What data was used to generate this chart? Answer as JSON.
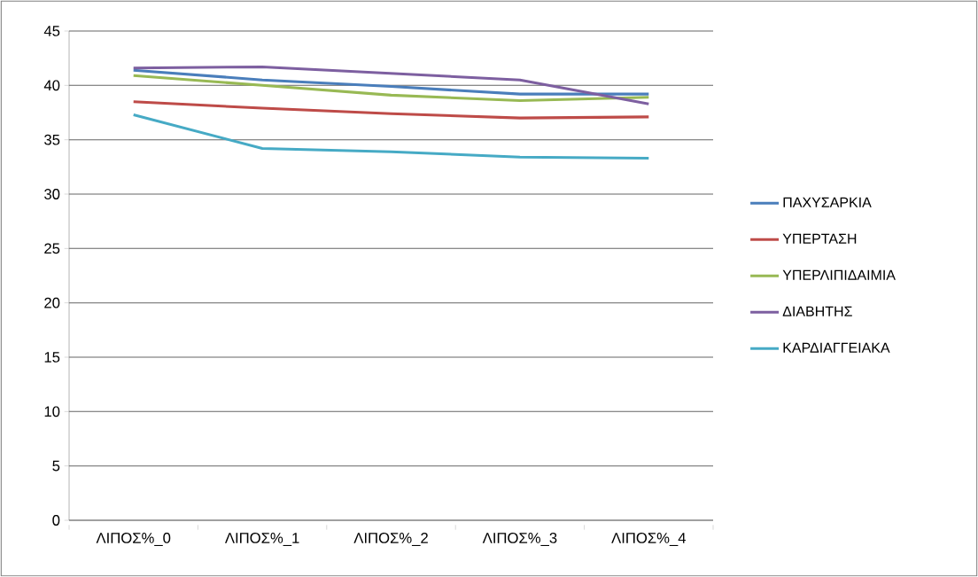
{
  "chart_data": {
    "type": "line",
    "categories": [
      "ΛΙΠΟΣ%_0",
      "ΛΙΠΟΣ%_1",
      "ΛΙΠΟΣ%_2",
      "ΛΙΠΟΣ%_3",
      "ΛΙΠΟΣ%_4"
    ],
    "series": [
      {
        "name": "ΠΑΧΥΣΑΡΚΙΑ",
        "color": "#4a7ebb",
        "values": [
          41.4,
          40.5,
          39.9,
          39.2,
          39.2
        ]
      },
      {
        "name": "ΥΠΕΡΤΑΣΗ",
        "color": "#be4b48",
        "values": [
          38.5,
          37.9,
          37.4,
          37.0,
          37.1
        ]
      },
      {
        "name": "ΥΠΕΡΛΙΠΙΔΑΙΜΙΑ",
        "color": "#98b954",
        "values": [
          40.9,
          40.0,
          39.1,
          38.6,
          38.9
        ]
      },
      {
        "name": "ΔΙΑΒΗΤΗΣ",
        "color": "#7d5fa0",
        "values": [
          41.6,
          41.7,
          41.1,
          40.5,
          38.3
        ]
      },
      {
        "name": "ΚΑΡΔΙΑΓΓΕΙΑΚΑ",
        "color": "#46aac5",
        "values": [
          37.3,
          34.2,
          33.9,
          33.4,
          33.3
        ]
      }
    ],
    "ylim": [
      0,
      45
    ],
    "yticks": [
      0,
      5,
      10,
      15,
      20,
      25,
      30,
      35,
      40,
      45
    ],
    "grid": "y",
    "legend": "right"
  }
}
